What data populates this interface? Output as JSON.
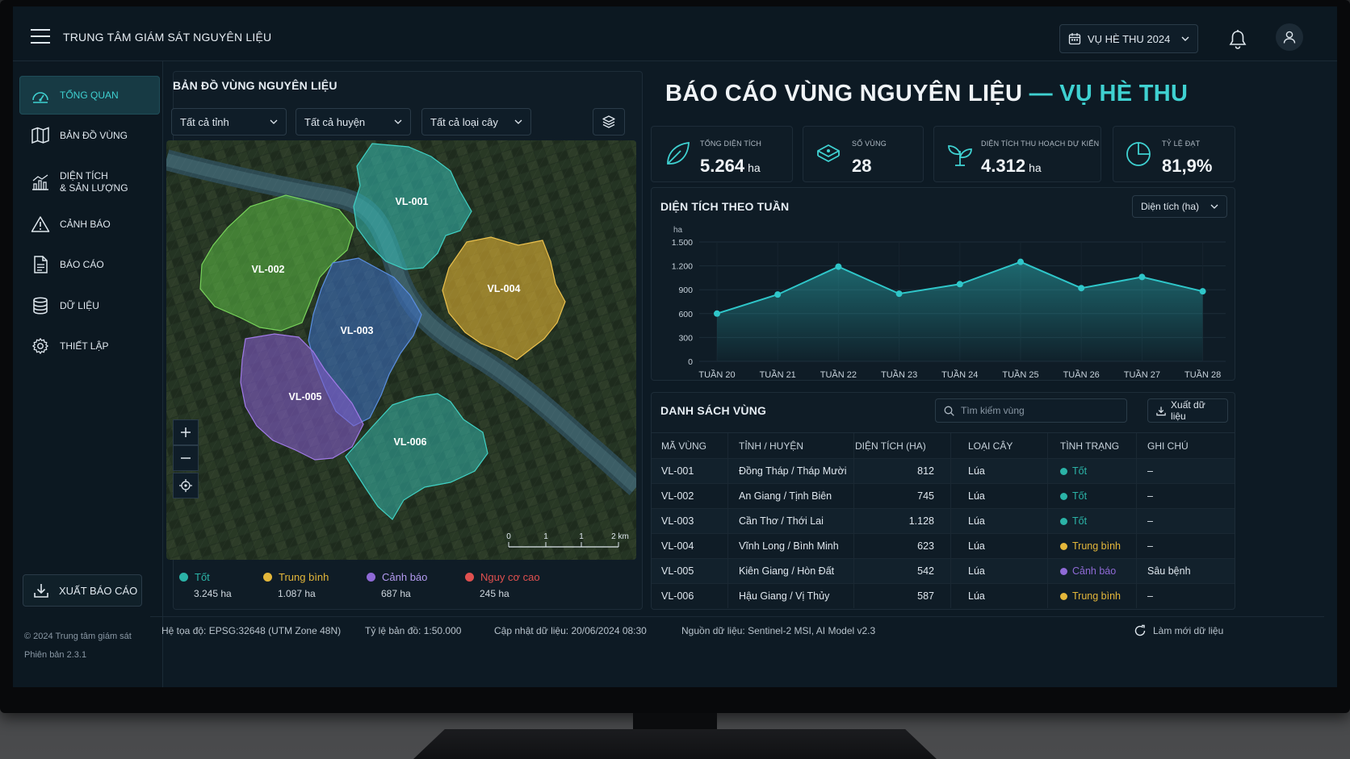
{
  "header": {
    "title": "TRUNG TÂM GIÁM SÁT NGUYÊN LIỆU",
    "season": "VỤ HÈ THU 2024"
  },
  "sidebar": {
    "items": [
      {
        "label": "TỔNG QUAN",
        "icon": "gauge-icon",
        "active": true
      },
      {
        "label": "BẢN ĐỒ VÙNG",
        "icon": "map-icon"
      },
      {
        "label_line1": "DIỆN TÍCH",
        "label_line2": "& SẢN LƯỢNG",
        "icon": "bar-chart-icon"
      },
      {
        "label": "CẢNH BÁO",
        "icon": "warning-icon"
      },
      {
        "label": "BÁO CÁO",
        "icon": "document-icon"
      },
      {
        "label": "DỮ LIỆU",
        "icon": "database-icon"
      },
      {
        "label": "THIẾT LẬP",
        "icon": "gear-icon"
      }
    ],
    "export_label": "XUẤT BÁO CÁO",
    "copyright": "© 2024 Trung tâm giám sát",
    "version": "Phiên bản 2.3.1"
  },
  "map": {
    "title": "BẢN ĐỒ VÙNG NGUYÊN LIỆU",
    "filters": [
      "Tất cả tỉnh",
      "Tất cả huyện",
      "Tất cả loại cây"
    ],
    "zones": [
      {
        "id": "VL-001",
        "status": "Tốt"
      },
      {
        "id": "VL-002",
        "status": "Tốt"
      },
      {
        "id": "VL-003",
        "status": "Tốt"
      },
      {
        "id": "VL-004",
        "status": "Trung bình"
      },
      {
        "id": "VL-005",
        "status": "Cảnh báo"
      },
      {
        "id": "VL-006",
        "status": "Trung bình"
      }
    ],
    "scale_labels": [
      "0",
      "1",
      "1",
      "2 km"
    ],
    "legend": [
      {
        "label": "Tốt",
        "value": "3.245 ha",
        "color": "#2bb3a7"
      },
      {
        "label": "Trung bình",
        "value": "1.087 ha",
        "color": "#e4b73a"
      },
      {
        "label": "Cảnh báo",
        "value": "687 ha",
        "color": "#8f6ad6"
      },
      {
        "label": "Nguy cơ cao",
        "value": "245 ha",
        "color": "#e0504f"
      }
    ]
  },
  "report": {
    "title_main": "BÁO CÁO VÙNG NGUYÊN LIỆU",
    "title_dash": "—",
    "title_accent": "VỤ HÈ THU",
    "stats": [
      {
        "label": "TỔNG DIỆN TÍCH",
        "value": "5.264",
        "unit": "ha",
        "icon": "leaf-icon"
      },
      {
        "label": "SỐ VÙNG",
        "value": "28",
        "unit": "",
        "icon": "map-layers-icon"
      },
      {
        "label": "DIỆN TÍCH THU HOẠCH DỰ KIẾN",
        "value": "4.312",
        "unit": "ha",
        "icon": "sprout-icon"
      },
      {
        "label": "TỶ LỆ ĐẠT",
        "value": "81,9%",
        "unit": "",
        "icon": "pie-icon"
      }
    ]
  },
  "chart": {
    "title": "DIỆN TÍCH THEO TUẦN",
    "unit_select": "Diện tích (ha)",
    "accent": "#2fc6c9"
  },
  "chart_data": {
    "type": "area",
    "title": "DIỆN TÍCH THEO TUẦN",
    "ylabel": "ha",
    "xlabel": "",
    "categories": [
      "TUẦN 20",
      "TUẦN 21",
      "TUẦN 22",
      "TUẦN 23",
      "TUẦN 24",
      "TUẦN 25",
      "TUẦN 26",
      "TUẦN 27",
      "TUẦN 28"
    ],
    "values": [
      600,
      840,
      1190,
      850,
      970,
      1250,
      920,
      1060,
      880
    ],
    "ylim": [
      0,
      1500
    ],
    "yticks": [
      0,
      300,
      600,
      900,
      1200,
      1500
    ],
    "ytick_labels": [
      "0",
      "300",
      "600",
      "900",
      "1.200",
      "1.500"
    ],
    "grid": true
  },
  "table": {
    "title": "DANH SÁCH VÙNG",
    "search_placeholder": "Tìm kiếm vùng",
    "export_label": "Xuất dữ liệu",
    "columns": [
      "MÃ VÙNG",
      "TỈNH / HUYỆN",
      "DIỆN TÍCH (HA)",
      "LOẠI CÂY",
      "TÌNH TRẠNG",
      "GHI CHÚ"
    ],
    "rows": [
      {
        "code": "VL-001",
        "location": "Đồng Tháp / Tháp Mười",
        "area": "812",
        "crop": "Lúa",
        "status": "Tốt",
        "status_color": "#2bb3a7",
        "note": "–"
      },
      {
        "code": "VL-002",
        "location": "An Giang / Tịnh Biên",
        "area": "745",
        "crop": "Lúa",
        "status": "Tốt",
        "status_color": "#2bb3a7",
        "note": "–"
      },
      {
        "code": "VL-003",
        "location": "Cần Thơ / Thới Lai",
        "area": "1.128",
        "crop": "Lúa",
        "status": "Tốt",
        "status_color": "#2bb3a7",
        "note": "–"
      },
      {
        "code": "VL-004",
        "location": "Vĩnh Long / Bình Minh",
        "area": "623",
        "crop": "Lúa",
        "status": "Trung bình",
        "status_color": "#e4b73a",
        "note": "–"
      },
      {
        "code": "VL-005",
        "location": "Kiên Giang / Hòn Đất",
        "area": "542",
        "crop": "Lúa",
        "status": "Cảnh báo",
        "status_color": "#8f6ad6",
        "note": "Sâu bệnh"
      },
      {
        "code": "VL-006",
        "location": "Hậu Giang / Vị Thủy",
        "area": "587",
        "crop": "Lúa",
        "status": "Trung bình",
        "status_color": "#e4b73a",
        "note": "–"
      }
    ]
  },
  "footer": {
    "crs_label": "Hệ tọa độ:",
    "crs_value": "EPSG:32648 (UTM Zone 48N)",
    "scale_label": "Tỷ lệ bản đồ:",
    "scale_value": "1:50.000",
    "updated_label": "Cập nhật dữ liệu:",
    "updated_value": "20/06/2024 08:30",
    "source_label": "Nguồn dữ liệu:",
    "source_value": "Sentinel-2 MSI, AI Model v2.3",
    "refresh_label": "Làm mới dữ liệu"
  }
}
